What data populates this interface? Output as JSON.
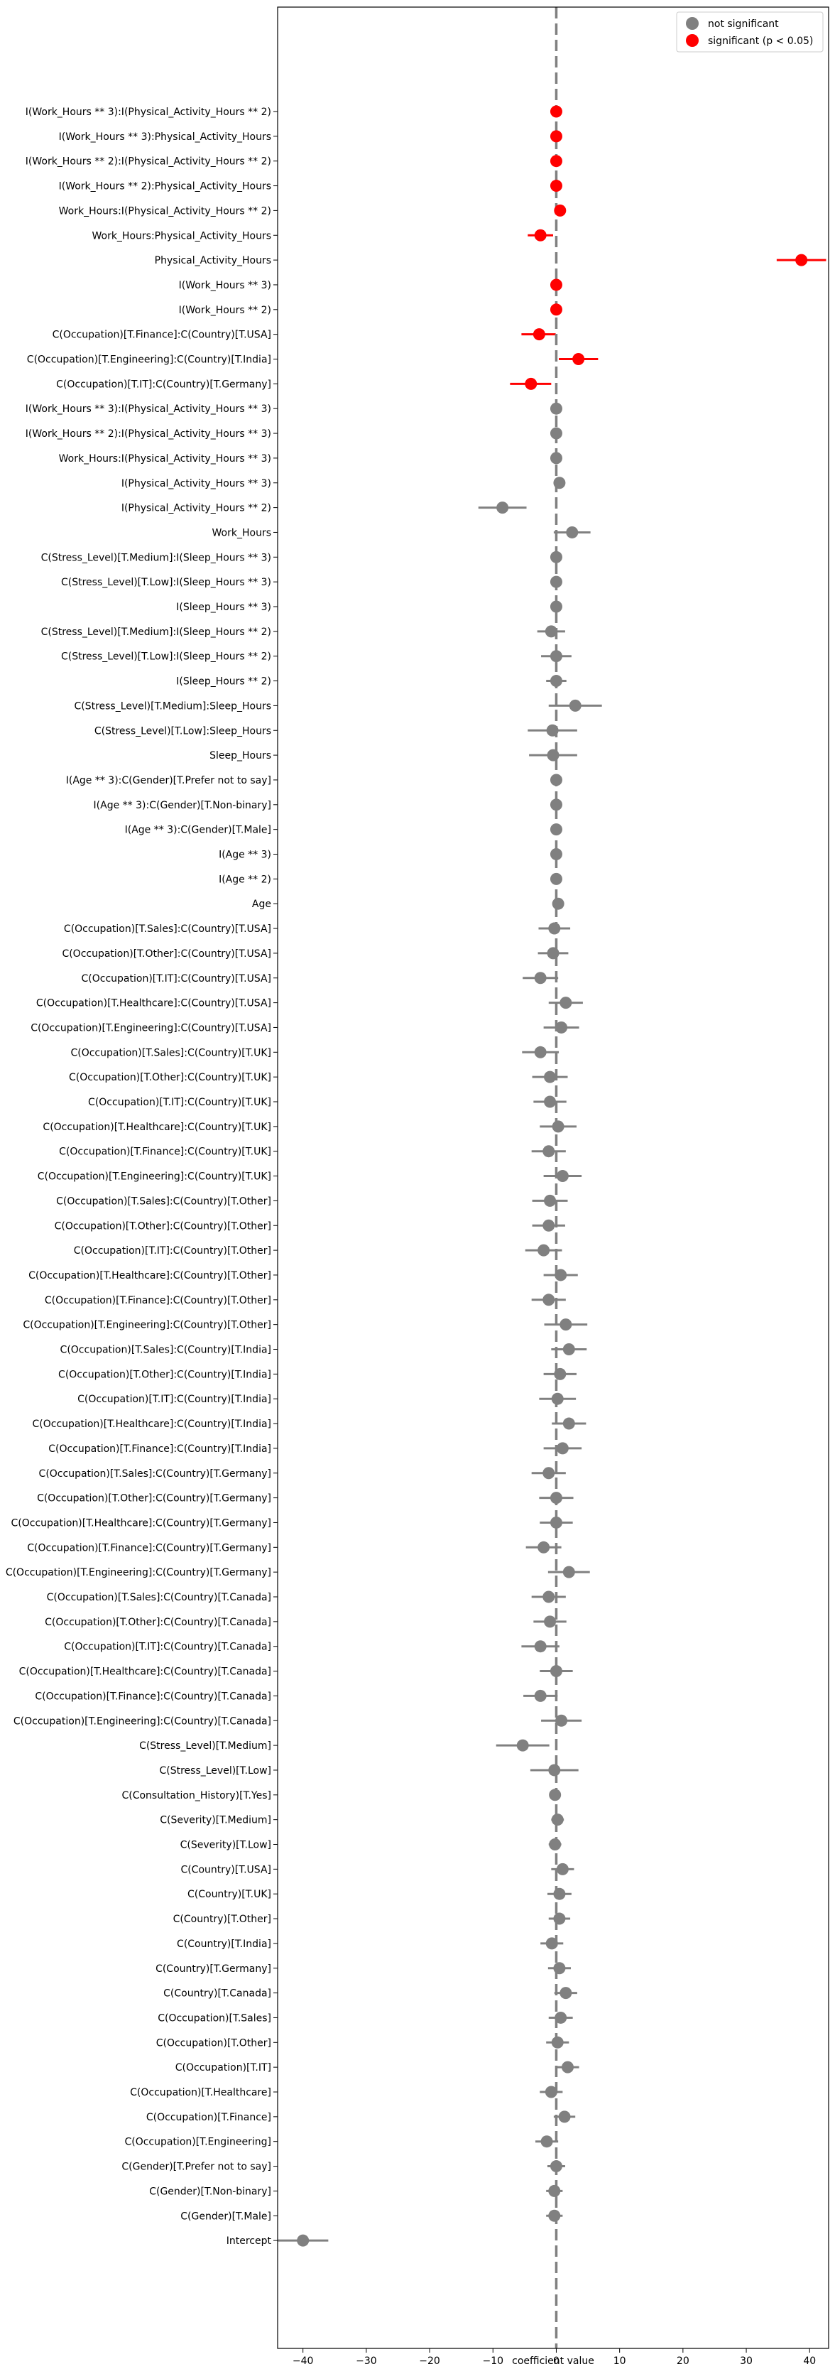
{
  "chart_data": {
    "type": "scatter",
    "subtype": "coefficient-plot with horizontal error bars",
    "xlabel": "coefficient value",
    "ylabel": "",
    "title": "",
    "xlim": [
      -44,
      43
    ],
    "xticks": [
      -40,
      -30,
      -20,
      -10,
      0,
      10,
      20,
      30,
      40
    ],
    "reference_line_x": 0,
    "grid": false,
    "legend": {
      "placement": "top-right",
      "entries": [
        {
          "label": "not significant",
          "color": "#808080"
        },
        {
          "label": "significant (p < 0.05)",
          "color": "#ff0000"
        }
      ]
    },
    "colors": {
      "not_significant": "#808080",
      "significant": "#ff0000"
    },
    "series": [
      {
        "term": "I(Work_Hours ** 3):I(Physical_Activity_Hours ** 2)",
        "coef": 0.0,
        "ci_low": 0.0,
        "ci_high": 0.0,
        "significant": true
      },
      {
        "term": "I(Work_Hours ** 3):Physical_Activity_Hours",
        "coef": 0.0,
        "ci_low": 0.0,
        "ci_high": 0.0,
        "significant": true
      },
      {
        "term": "I(Work_Hours ** 2):I(Physical_Activity_Hours ** 2)",
        "coef": 0.0,
        "ci_low": -0.1,
        "ci_high": 0.1,
        "significant": true
      },
      {
        "term": "I(Work_Hours ** 2):Physical_Activity_Hours",
        "coef": 0.0,
        "ci_low": -0.2,
        "ci_high": 0.2,
        "significant": true
      },
      {
        "term": "Work_Hours:I(Physical_Activity_Hours ** 2)",
        "coef": 0.6,
        "ci_low": 0.2,
        "ci_high": 1.0,
        "significant": true
      },
      {
        "term": "Work_Hours:Physical_Activity_Hours",
        "coef": -2.5,
        "ci_low": -4.5,
        "ci_high": -0.5,
        "significant": true
      },
      {
        "term": "Physical_Activity_Hours",
        "coef": 38.7,
        "ci_low": 34.8,
        "ci_high": 42.6,
        "significant": true
      },
      {
        "term": "I(Work_Hours ** 3)",
        "coef": 0.0,
        "ci_low": 0.0,
        "ci_high": 0.0,
        "significant": true
      },
      {
        "term": "I(Work_Hours ** 2)",
        "coef": 0.0,
        "ci_low": -0.1,
        "ci_high": 0.1,
        "significant": true
      },
      {
        "term": "C(Occupation)[T.Finance]:C(Country)[T.USA]",
        "coef": -2.7,
        "ci_low": -5.5,
        "ci_high": -0.1,
        "significant": true
      },
      {
        "term": "C(Occupation)[T.Engineering]:C(Country)[T.India]",
        "coef": 3.5,
        "ci_low": 0.4,
        "ci_high": 6.6,
        "significant": true
      },
      {
        "term": "C(Occupation)[T.IT]:C(Country)[T.Germany]",
        "coef": -4.0,
        "ci_low": -7.3,
        "ci_high": -0.8,
        "significant": true
      },
      {
        "term": "I(Work_Hours ** 3):I(Physical_Activity_Hours ** 3)",
        "coef": 0.0,
        "ci_low": 0.0,
        "ci_high": 0.0,
        "significant": false
      },
      {
        "term": "I(Work_Hours ** 2):I(Physical_Activity_Hours ** 3)",
        "coef": 0.0,
        "ci_low": 0.0,
        "ci_high": 0.0,
        "significant": false
      },
      {
        "term": "Work_Hours:I(Physical_Activity_Hours ** 3)",
        "coef": 0.0,
        "ci_low": -0.1,
        "ci_high": 0.1,
        "significant": false
      },
      {
        "term": "I(Physical_Activity_Hours ** 3)",
        "coef": 0.5,
        "ci_low": -0.2,
        "ci_high": 1.2,
        "significant": false
      },
      {
        "term": "I(Physical_Activity_Hours ** 2)",
        "coef": -8.5,
        "ci_low": -12.3,
        "ci_high": -4.7,
        "significant": false
      },
      {
        "term": "Work_Hours",
        "coef": 2.5,
        "ci_low": -0.4,
        "ci_high": 5.4,
        "significant": false
      },
      {
        "term": "C(Stress_Level)[T.Medium]:I(Sleep_Hours ** 3)",
        "coef": 0.0,
        "ci_low": -0.1,
        "ci_high": 0.1,
        "significant": false
      },
      {
        "term": "C(Stress_Level)[T.Low]:I(Sleep_Hours ** 3)",
        "coef": 0.0,
        "ci_low": -0.1,
        "ci_high": 0.1,
        "significant": false
      },
      {
        "term": "I(Sleep_Hours ** 3)",
        "coef": 0.0,
        "ci_low": -0.1,
        "ci_high": 0.1,
        "significant": false
      },
      {
        "term": "C(Stress_Level)[T.Medium]:I(Sleep_Hours ** 2)",
        "coef": -0.8,
        "ci_low": -3.0,
        "ci_high": 1.4,
        "significant": false
      },
      {
        "term": "C(Stress_Level)[T.Low]:I(Sleep_Hours ** 2)",
        "coef": 0.0,
        "ci_low": -2.4,
        "ci_high": 2.4,
        "significant": false
      },
      {
        "term": "I(Sleep_Hours ** 2)",
        "coef": 0.0,
        "ci_low": -1.6,
        "ci_high": 1.6,
        "significant": false
      },
      {
        "term": "C(Stress_Level)[T.Medium]:Sleep_Hours",
        "coef": 3.0,
        "ci_low": -1.2,
        "ci_high": 7.2,
        "significant": false
      },
      {
        "term": "C(Stress_Level)[T.Low]:Sleep_Hours",
        "coef": -0.6,
        "ci_low": -4.5,
        "ci_high": 3.3,
        "significant": false
      },
      {
        "term": "Sleep_Hours",
        "coef": -0.5,
        "ci_low": -4.3,
        "ci_high": 3.3,
        "significant": false
      },
      {
        "term": "I(Age ** 3):C(Gender)[T.Prefer not to say]",
        "coef": 0.0,
        "ci_low": 0.0,
        "ci_high": 0.0,
        "significant": false
      },
      {
        "term": "I(Age ** 3):C(Gender)[T.Non-binary]",
        "coef": 0.0,
        "ci_low": 0.0,
        "ci_high": 0.0,
        "significant": false
      },
      {
        "term": "I(Age ** 3):C(Gender)[T.Male]",
        "coef": 0.0,
        "ci_low": 0.0,
        "ci_high": 0.0,
        "significant": false
      },
      {
        "term": "I(Age ** 3)",
        "coef": 0.0,
        "ci_low": 0.0,
        "ci_high": 0.0,
        "significant": false
      },
      {
        "term": "I(Age ** 2)",
        "coef": 0.0,
        "ci_low": 0.0,
        "ci_high": 0.0,
        "significant": false
      },
      {
        "term": "Age",
        "coef": 0.3,
        "ci_low": 0.0,
        "ci_high": 0.6,
        "significant": false
      },
      {
        "term": "C(Occupation)[T.Sales]:C(Country)[T.USA]",
        "coef": -0.3,
        "ci_low": -2.8,
        "ci_high": 2.2,
        "significant": false
      },
      {
        "term": "C(Occupation)[T.Other]:C(Country)[T.USA]",
        "coef": -0.5,
        "ci_low": -2.9,
        "ci_high": 1.9,
        "significant": false
      },
      {
        "term": "C(Occupation)[T.IT]:C(Country)[T.USA]",
        "coef": -2.5,
        "ci_low": -5.3,
        "ci_high": 0.3,
        "significant": false
      },
      {
        "term": "C(Occupation)[T.Healthcare]:C(Country)[T.USA]",
        "coef": 1.5,
        "ci_low": -1.2,
        "ci_high": 4.2,
        "significant": false
      },
      {
        "term": "C(Occupation)[T.Engineering]:C(Country)[T.USA]",
        "coef": 0.8,
        "ci_low": -2.0,
        "ci_high": 3.6,
        "significant": false
      },
      {
        "term": "C(Occupation)[T.Sales]:C(Country)[T.UK]",
        "coef": -2.5,
        "ci_low": -5.4,
        "ci_high": 0.4,
        "significant": false
      },
      {
        "term": "C(Occupation)[T.Other]:C(Country)[T.UK]",
        "coef": -1.0,
        "ci_low": -3.8,
        "ci_high": 1.8,
        "significant": false
      },
      {
        "term": "C(Occupation)[T.IT]:C(Country)[T.UK]",
        "coef": -1.0,
        "ci_low": -3.6,
        "ci_high": 1.6,
        "significant": false
      },
      {
        "term": "C(Occupation)[T.Healthcare]:C(Country)[T.UK]",
        "coef": 0.3,
        "ci_low": -2.6,
        "ci_high": 3.2,
        "significant": false
      },
      {
        "term": "C(Occupation)[T.Finance]:C(Country)[T.UK]",
        "coef": -1.2,
        "ci_low": -3.9,
        "ci_high": 1.5,
        "significant": false
      },
      {
        "term": "C(Occupation)[T.Engineering]:C(Country)[T.UK]",
        "coef": 1.0,
        "ci_low": -2.0,
        "ci_high": 4.0,
        "significant": false
      },
      {
        "term": "C(Occupation)[T.Sales]:C(Country)[T.Other]",
        "coef": -1.0,
        "ci_low": -3.8,
        "ci_high": 1.8,
        "significant": false
      },
      {
        "term": "C(Occupation)[T.Other]:C(Country)[T.Other]",
        "coef": -1.2,
        "ci_low": -3.8,
        "ci_high": 1.4,
        "significant": false
      },
      {
        "term": "C(Occupation)[T.IT]:C(Country)[T.Other]",
        "coef": -2.0,
        "ci_low": -4.9,
        "ci_high": 0.9,
        "significant": false
      },
      {
        "term": "C(Occupation)[T.Healthcare]:C(Country)[T.Other]",
        "coef": 0.7,
        "ci_low": -2.0,
        "ci_high": 3.4,
        "significant": false
      },
      {
        "term": "C(Occupation)[T.Finance]:C(Country)[T.Other]",
        "coef": -1.2,
        "ci_low": -3.9,
        "ci_high": 1.5,
        "significant": false
      },
      {
        "term": "C(Occupation)[T.Engineering]:C(Country)[T.Other]",
        "coef": 1.5,
        "ci_low": -1.9,
        "ci_high": 4.9,
        "significant": false
      },
      {
        "term": "C(Occupation)[T.Sales]:C(Country)[T.India]",
        "coef": 2.0,
        "ci_low": -0.8,
        "ci_high": 4.8,
        "significant": false
      },
      {
        "term": "C(Occupation)[T.Other]:C(Country)[T.India]",
        "coef": 0.6,
        "ci_low": -2.0,
        "ci_high": 3.2,
        "significant": false
      },
      {
        "term": "C(Occupation)[T.IT]:C(Country)[T.India]",
        "coef": 0.2,
        "ci_low": -2.7,
        "ci_high": 3.1,
        "significant": false
      },
      {
        "term": "C(Occupation)[T.Healthcare]:C(Country)[T.India]",
        "coef": 2.0,
        "ci_low": -0.7,
        "ci_high": 4.7,
        "significant": false
      },
      {
        "term": "C(Occupation)[T.Finance]:C(Country)[T.India]",
        "coef": 1.0,
        "ci_low": -2.0,
        "ci_high": 4.0,
        "significant": false
      },
      {
        "term": "C(Occupation)[T.Sales]:C(Country)[T.Germany]",
        "coef": -1.2,
        "ci_low": -3.9,
        "ci_high": 1.5,
        "significant": false
      },
      {
        "term": "C(Occupation)[T.Other]:C(Country)[T.Germany]",
        "coef": 0.0,
        "ci_low": -2.7,
        "ci_high": 2.7,
        "significant": false
      },
      {
        "term": "C(Occupation)[T.Healthcare]:C(Country)[T.Germany]",
        "coef": 0.0,
        "ci_low": -2.6,
        "ci_high": 2.6,
        "significant": false
      },
      {
        "term": "C(Occupation)[T.Finance]:C(Country)[T.Germany]",
        "coef": -2.0,
        "ci_low": -4.8,
        "ci_high": 0.8,
        "significant": false
      },
      {
        "term": "C(Occupation)[T.Engineering]:C(Country)[T.Germany]",
        "coef": 2.0,
        "ci_low": -1.3,
        "ci_high": 5.3,
        "significant": false
      },
      {
        "term": "C(Occupation)[T.Sales]:C(Country)[T.Canada]",
        "coef": -1.2,
        "ci_low": -3.9,
        "ci_high": 1.5,
        "significant": false
      },
      {
        "term": "C(Occupation)[T.Other]:C(Country)[T.Canada]",
        "coef": -1.0,
        "ci_low": -3.6,
        "ci_high": 1.6,
        "significant": false
      },
      {
        "term": "C(Occupation)[T.IT]:C(Country)[T.Canada]",
        "coef": -2.5,
        "ci_low": -5.5,
        "ci_high": 0.5,
        "significant": false
      },
      {
        "term": "C(Occupation)[T.Healthcare]:C(Country)[T.Canada]",
        "coef": 0.0,
        "ci_low": -2.6,
        "ci_high": 2.6,
        "significant": false
      },
      {
        "term": "C(Occupation)[T.Finance]:C(Country)[T.Canada]",
        "coef": -2.5,
        "ci_low": -5.2,
        "ci_high": 0.2,
        "significant": false
      },
      {
        "term": "C(Occupation)[T.Engineering]:C(Country)[T.Canada]",
        "coef": 0.8,
        "ci_low": -2.4,
        "ci_high": 4.0,
        "significant": false
      },
      {
        "term": "C(Stress_Level)[T.Medium]",
        "coef": -5.3,
        "ci_low": -9.5,
        "ci_high": -1.1,
        "significant": false
      },
      {
        "term": "C(Stress_Level)[T.Low]",
        "coef": -0.3,
        "ci_low": -4.1,
        "ci_high": 3.5,
        "significant": false
      },
      {
        "term": "C(Consultation_History)[T.Yes]",
        "coef": -0.2,
        "ci_low": -1.1,
        "ci_high": 0.7,
        "significant": false
      },
      {
        "term": "C(Severity)[T.Medium]",
        "coef": 0.2,
        "ci_low": -0.8,
        "ci_high": 1.2,
        "significant": false
      },
      {
        "term": "C(Severity)[T.Low]",
        "coef": -0.2,
        "ci_low": -1.2,
        "ci_high": 0.8,
        "significant": false
      },
      {
        "term": "C(Country)[T.USA]",
        "coef": 1.0,
        "ci_low": -0.8,
        "ci_high": 2.8,
        "significant": false
      },
      {
        "term": "C(Country)[T.UK]",
        "coef": 0.5,
        "ci_low": -1.4,
        "ci_high": 2.4,
        "significant": false
      },
      {
        "term": "C(Country)[T.Other]",
        "coef": 0.5,
        "ci_low": -1.2,
        "ci_high": 2.2,
        "significant": false
      },
      {
        "term": "C(Country)[T.India]",
        "coef": -0.7,
        "ci_low": -2.5,
        "ci_high": 1.1,
        "significant": false
      },
      {
        "term": "C(Country)[T.Germany]",
        "coef": 0.5,
        "ci_low": -1.3,
        "ci_high": 2.3,
        "significant": false
      },
      {
        "term": "C(Country)[T.Canada]",
        "coef": 1.5,
        "ci_low": -0.3,
        "ci_high": 3.3,
        "significant": false
      },
      {
        "term": "C(Occupation)[T.Sales]",
        "coef": 0.7,
        "ci_low": -1.2,
        "ci_high": 2.6,
        "significant": false
      },
      {
        "term": "C(Occupation)[T.Other]",
        "coef": 0.2,
        "ci_low": -1.6,
        "ci_high": 2.0,
        "significant": false
      },
      {
        "term": "C(Occupation)[T.IT]",
        "coef": 1.8,
        "ci_low": 0.0,
        "ci_high": 3.6,
        "significant": false
      },
      {
        "term": "C(Occupation)[T.Healthcare]",
        "coef": -0.8,
        "ci_low": -2.6,
        "ci_high": 1.0,
        "significant": false
      },
      {
        "term": "C(Occupation)[T.Finance]",
        "coef": 1.3,
        "ci_low": -0.4,
        "ci_high": 3.0,
        "significant": false
      },
      {
        "term": "C(Occupation)[T.Engineering]",
        "coef": -1.5,
        "ci_low": -3.3,
        "ci_high": 0.3,
        "significant": false
      },
      {
        "term": "C(Gender)[T.Prefer not to say]",
        "coef": 0.0,
        "ci_low": -1.4,
        "ci_high": 1.4,
        "significant": false
      },
      {
        "term": "C(Gender)[T.Non-binary]",
        "coef": -0.3,
        "ci_low": -1.6,
        "ci_high": 1.0,
        "significant": false
      },
      {
        "term": "C(Gender)[T.Male]",
        "coef": -0.3,
        "ci_low": -1.6,
        "ci_high": 1.0,
        "significant": false
      },
      {
        "term": "Intercept",
        "coef": -40.0,
        "ci_low": -44.0,
        "ci_high": -36.0,
        "significant": false
      }
    ]
  }
}
